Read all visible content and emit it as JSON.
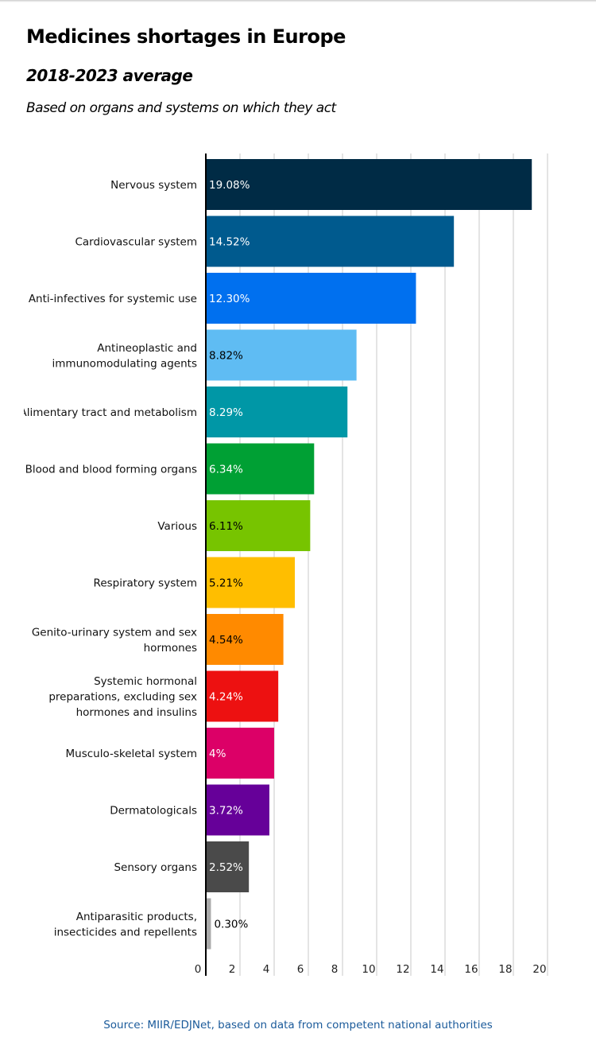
{
  "header": {
    "title": "Medicines shortages in Europe",
    "subtitle": "2018-2023 average",
    "description": "Based on organs and systems on which they act"
  },
  "source": "Source: MIIR/EDJNet, based on data from competent national authorities",
  "chart_data": {
    "type": "bar",
    "orientation": "horizontal",
    "title": "Medicines shortages in Europe",
    "subtitle": "2018-2023 average",
    "categories": [
      [
        "Nervous system"
      ],
      [
        "Cardiovascular system"
      ],
      [
        "Anti-infectives for systemic use"
      ],
      [
        "Antineoplastic and",
        "immunomodulating agents"
      ],
      [
        "Alimentary tract and metabolism"
      ],
      [
        "Blood and blood forming organs"
      ],
      [
        "Various"
      ],
      [
        "Respiratory system"
      ],
      [
        "Genito-urinary system and sex",
        "hormones"
      ],
      [
        "Systemic hormonal",
        "preparations, excluding sex",
        "hormones and insulins"
      ],
      [
        "Musculo-skeletal system"
      ],
      [
        "Dermatologicals"
      ],
      [
        "Sensory organs"
      ],
      [
        "Antiparasitic products,",
        "insecticides and repellents"
      ]
    ],
    "values": [
      19.08,
      14.52,
      12.3,
      8.82,
      8.29,
      6.34,
      6.11,
      5.21,
      4.54,
      4.24,
      4,
      3.72,
      2.52,
      0.3
    ],
    "data_labels": [
      "19.08%",
      "14.52%",
      "12.30%",
      "8.82%",
      "8.29%",
      "6.34%",
      "6.11%",
      "5.21%",
      "4.54%",
      "4.24%",
      "4%",
      "3.72%",
      "2.52%",
      "0.30%"
    ],
    "colors": [
      "#002b45",
      "#005a8e",
      "#0070ef",
      "#5fbcf3",
      "#0097a6",
      "#00a034",
      "#77c400",
      "#ffbe00",
      "#ff8a00",
      "#ed1111",
      "#dc0067",
      "#660099",
      "#4a4a4a",
      "#aaaaaa"
    ],
    "label_colors": [
      "#ffffff",
      "#ffffff",
      "#ffffff",
      "#000000",
      "#ffffff",
      "#ffffff",
      "#000000",
      "#000000",
      "#000000",
      "#ffffff",
      "#ffffff",
      "#ffffff",
      "#ffffff",
      "#000000"
    ],
    "xlim": [
      0,
      20
    ],
    "xticks": [
      "0",
      "2",
      "4",
      "6",
      "8",
      "10",
      "12",
      "14",
      "16",
      "18",
      "20"
    ],
    "grid": true,
    "legend": "none"
  }
}
